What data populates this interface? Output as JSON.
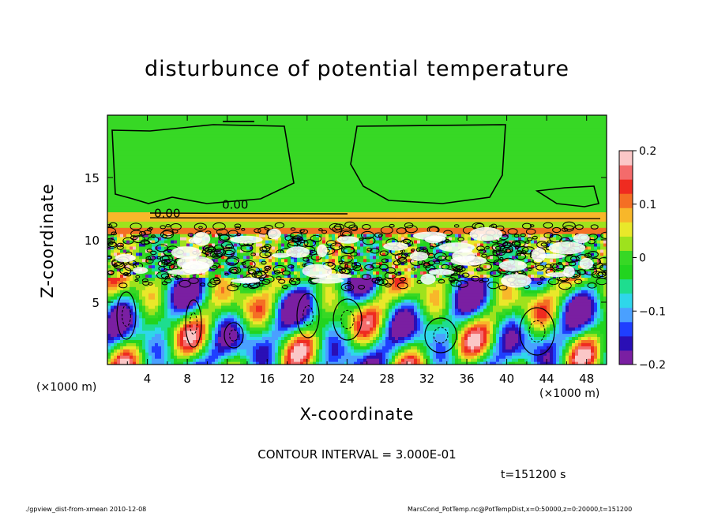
{
  "chart_data": {
    "type": "heatmap",
    "title": "disturbunce of potential temperature",
    "xlabel": "X-coordinate",
    "ylabel": "Z-coordinate",
    "x_unit": "(×1000 m)",
    "x_ticks": [
      4,
      8,
      12,
      16,
      20,
      24,
      28,
      32,
      36,
      40,
      44,
      48
    ],
    "y_ticks": [
      5,
      10,
      15
    ],
    "xlim": [
      0,
      50
    ],
    "ylim": [
      0,
      20
    ],
    "colorbar": {
      "range": [
        -0.2,
        0.2
      ],
      "tick_labels": [
        "0.2",
        "0.1",
        "0",
        "−0.1",
        "−0.2"
      ],
      "tick_values": [
        0.2,
        0.1,
        0,
        -0.1,
        -0.2
      ],
      "colors": [
        "#7a1fa2",
        "#2a0fb5",
        "#1f3fff",
        "#4aa0ff",
        "#2fd6ea",
        "#1edd8f",
        "#22d41f",
        "#37d825",
        "#9ee21d",
        "#e9e82a",
        "#f8b72a",
        "#f46f24",
        "#ef2b20",
        "#f46b6b",
        "#fbc7c7"
      ]
    },
    "contour_labels": [
      {
        "text": "0.00",
        "x": 12.8,
        "z": 12.5
      },
      {
        "text": "0.00",
        "x": 6.0,
        "z": 11.8
      }
    ],
    "contour_interval_text": "CONTOUR INTERVAL = 3.000E-01",
    "time_text": "t=151200 s",
    "regions": {
      "upper_layer": {
        "z_range": [
          11,
          20
        ],
        "value": 0.0,
        "color": "#3fd12d"
      },
      "inversion_band": {
        "z_range": [
          10.4,
          12.2
        ],
        "values": [
          0.05,
          -0.02,
          0.1
        ]
      },
      "mixed_layer": {
        "z_range": [
          7,
          10.4
        ],
        "value": "noisy"
      },
      "convective_layer": {
        "z_range": [
          0,
          7
        ],
        "value": "eddies"
      }
    }
  },
  "footer": {
    "left": "./gpview_dist-from-xmean   2010-12-08",
    "right": "MarsCond_PotTemp.nc@PotTempDist,x=0:50000,z=0:20000,t=151200"
  }
}
